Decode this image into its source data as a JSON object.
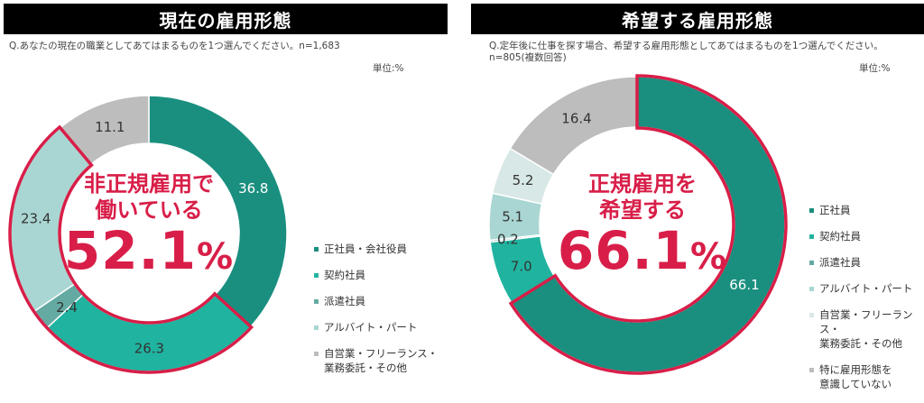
{
  "left": {
    "title": "現在の雇用形態",
    "question": "Q.あなたの現在の職業としてあてはまるものを1つ選んでください。n=1,683",
    "unit": "単位:%",
    "center_line1": "非正規雇用で",
    "center_line2": "働いている",
    "center_value": "52.1",
    "center_percent": "%",
    "legend": [
      {
        "label": "正社員・会社役員",
        "color": "#1a8f7f"
      },
      {
        "label": "契約社員",
        "color": "#20b3a0"
      },
      {
        "label": "派遣社員",
        "color": "#64aaa2"
      },
      {
        "label": "アルバイト・パート",
        "color": "#a9d6d2"
      },
      {
        "label": "自営業・フリーランス・\n業務委託・その他",
        "color": "#bdbdbd"
      }
    ]
  },
  "right": {
    "title": "希望する雇用形態",
    "question_line1": "Q.定年後に仕事を探す場合、希望する雇用形態としてあてはまるものを1つ選んでください。",
    "question_line2": "n=805(複数回答)",
    "unit": "単位:%",
    "center_line1": "正規雇用を",
    "center_line2": "希望する",
    "center_value": "66.1",
    "center_percent": "%",
    "legend": [
      {
        "label": "正社員",
        "color": "#1a8f7f"
      },
      {
        "label": "契約社員",
        "color": "#20b3a0"
      },
      {
        "label": "派遣社員",
        "color": "#64aaa2"
      },
      {
        "label": "アルバイト・パート",
        "color": "#a9d6d2"
      },
      {
        "label": "自営業・フリーランス・\n業務委託・その他",
        "color": "#d8e8e6"
      },
      {
        "label": "特に雇用形態を\n意識していない",
        "color": "#bdbdbd"
      }
    ]
  },
  "highlight_color": "#d81e48",
  "chart_data": [
    {
      "type": "pie",
      "title": "現在の雇用形態",
      "categories": [
        "正社員・会社役員",
        "契約社員",
        "派遣社員",
        "アルバイト・パート",
        "自営業・フリーランス・業務委託・その他"
      ],
      "values": [
        36.8,
        26.3,
        2.4,
        23.4,
        11.1
      ],
      "labels": [
        "36.8",
        "26.3",
        "2.4",
        "23.4",
        "11.1"
      ],
      "colors": [
        "#1a8f7f",
        "#20b3a0",
        "#64aaa2",
        "#a9d6d2",
        "#bdbdbd"
      ],
      "label_colors": [
        "#ffffff",
        "#333333",
        "#333333",
        "#333333",
        "#333333"
      ],
      "highlight_indices": [
        1,
        2,
        3
      ],
      "highlight_total": "52.1"
    },
    {
      "type": "pie",
      "title": "希望する雇用形態",
      "categories": [
        "正社員",
        "契約社員",
        "派遣社員",
        "アルバイト・パート",
        "自営業・フリーランス・業務委託・その他",
        "特に雇用形態を意識していない"
      ],
      "values": [
        66.1,
        7.0,
        0.2,
        5.1,
        5.2,
        16.4
      ],
      "labels": [
        "66.1",
        "7.0",
        "0.2",
        "5.1",
        "5.2",
        "16.4"
      ],
      "colors": [
        "#1a8f7f",
        "#20b3a0",
        "#64aaa2",
        "#a9d6d2",
        "#d8e8e6",
        "#bdbdbd"
      ],
      "label_colors": [
        "#ffffff",
        "#333333",
        "#333333",
        "#333333",
        "#333333",
        "#333333"
      ],
      "highlight_indices": [
        0
      ],
      "highlight_total": "66.1"
    }
  ]
}
